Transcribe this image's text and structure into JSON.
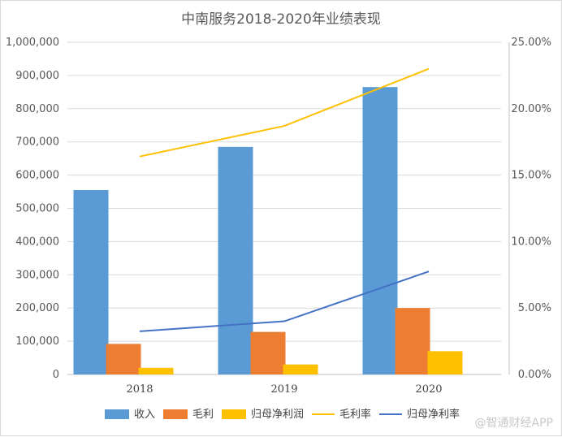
{
  "chart_data": {
    "type": "bar",
    "title": "中南服务2018-2020年业绩表现",
    "categories": [
      "2018",
      "2019",
      "2020"
    ],
    "series": [
      {
        "name": "收入",
        "kind": "bar",
        "axis": "left",
        "color": "#5B9BD5",
        "values": [
          555000,
          685000,
          865000
        ]
      },
      {
        "name": "毛利",
        "kind": "bar",
        "axis": "left",
        "color": "#ED7D31",
        "values": [
          92000,
          128000,
          200000
        ]
      },
      {
        "name": "归母净利润",
        "kind": "bar",
        "axis": "left",
        "color": "#FFC000",
        "values": [
          20000,
          30000,
          70000
        ]
      },
      {
        "name": "毛利率",
        "kind": "line",
        "axis": "right",
        "color": "#FFC000",
        "values": [
          0.164,
          0.187,
          0.23
        ]
      },
      {
        "name": "归母净利率",
        "kind": "line",
        "axis": "right",
        "color": "#4472C4",
        "values": [
          0.0325,
          0.04,
          0.0775
        ]
      }
    ],
    "ylim": [
      0,
      1000000
    ],
    "y2lim": [
      0,
      0.25
    ],
    "y_ticks": [
      "0",
      "100,000",
      "200,000",
      "300,000",
      "400,000",
      "500,000",
      "600,000",
      "700,000",
      "800,000",
      "900,000",
      "1,000,000"
    ],
    "y2_ticks": [
      "0.00%",
      "5.00%",
      "10.00%",
      "15.00%",
      "20.00%",
      "25.00%"
    ],
    "legend_position": "bottom"
  },
  "watermark": "@智通财经APP"
}
